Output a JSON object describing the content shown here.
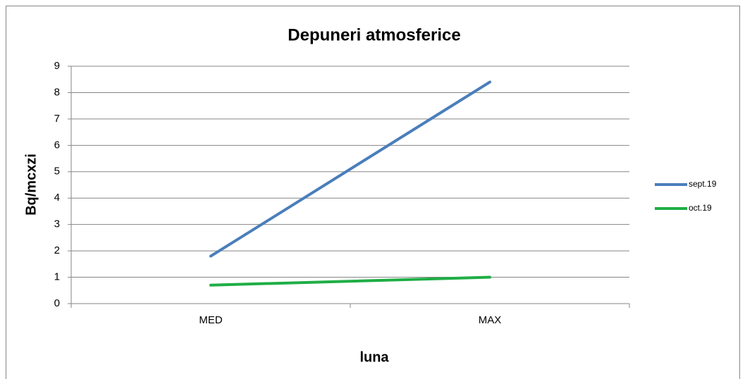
{
  "chart_data": {
    "type": "line",
    "title": "Depuneri atmosferice",
    "x_label": "luna",
    "y_label": "Bq/mcxzi",
    "categories": [
      "MED",
      "MAX"
    ],
    "series": [
      {
        "name": "sept.19",
        "color": "#4a7ebb",
        "values": [
          1.8,
          8.4
        ]
      },
      {
        "name": "oct.19",
        "color": "#1fae45",
        "values": [
          0.7,
          1.0
        ]
      }
    ],
    "ylim": [
      0,
      9
    ],
    "yticks": [
      0,
      1,
      2,
      3,
      4,
      5,
      6,
      7,
      8,
      9
    ],
    "grid": true,
    "legend": "right"
  }
}
